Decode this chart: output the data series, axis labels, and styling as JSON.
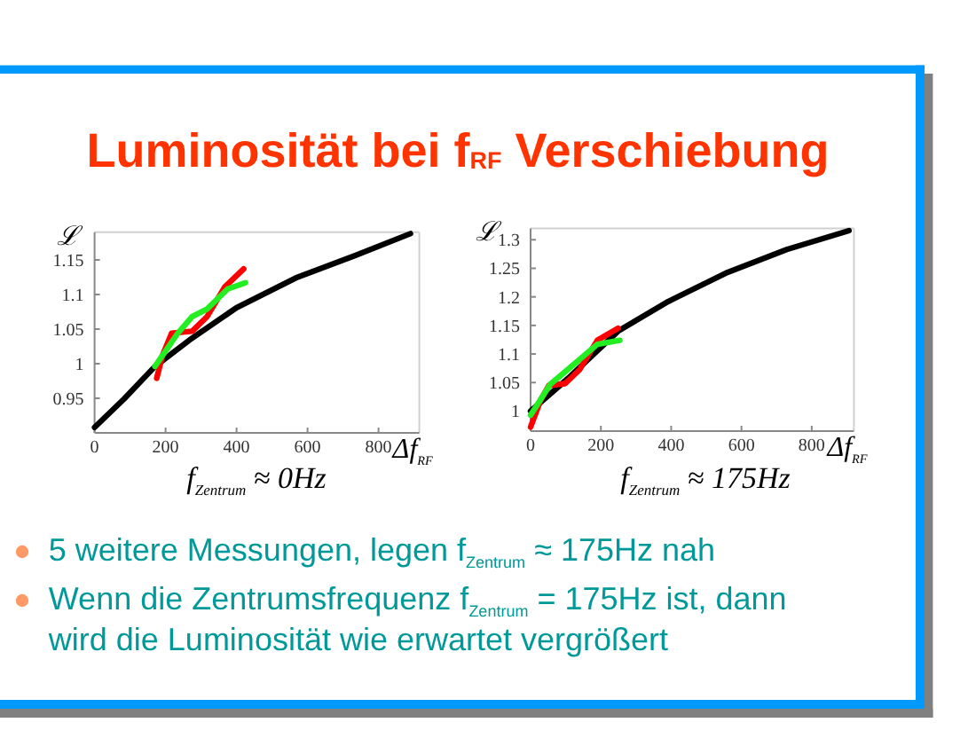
{
  "chart_data": [
    {
      "type": "line",
      "title": "Luminosität bei f$_{RF}$ Verschiebung",
      "xlabel": "Δf$_{RF}$",
      "ylabel": "ℒ",
      "annotations": [
        "f$_{Zentrum}$ ≈ 0Hz"
      ],
      "xlim": [
        0,
        915
      ],
      "ylim": [
        0.9,
        1.19
      ],
      "xticks": [
        0,
        200,
        400,
        600,
        800
      ],
      "yticks": [
        0.95,
        1,
        1.05,
        1.1,
        1.15
      ],
      "series": [
        {
          "color": "#000000",
          "x": [
            0,
            83,
            170,
            267,
            400,
            567,
            733,
            890
          ],
          "values": [
            0.908,
            0.949,
            0.996,
            1.034,
            1.081,
            1.124,
            1.156,
            1.188
          ]
        },
        {
          "color": "#ff0000",
          "x": [
            175,
            192,
            217,
            275,
            317,
            367,
            420
          ],
          "values": [
            0.979,
            1.013,
            1.044,
            1.047,
            1.068,
            1.111,
            1.137
          ]
        },
        {
          "color": "#22ee22",
          "x": [
            170,
            233,
            275,
            317,
            375,
            425
          ],
          "values": [
            0.996,
            1.043,
            1.068,
            1.079,
            1.108,
            1.117
          ]
        }
      ]
    },
    {
      "type": "line",
      "xlabel": "Δf$_{RF}$",
      "ylabel": "ℒ",
      "annotations": [
        "f$_{Zentrum}$ ≈ 175Hz",
        "5 weitere Messungen, legen f$_{Zentrum}$ ≈ 175Hz nah",
        "Wenn die Zentrumsfrequenz f$_{Zentrum}$ = 175Hz ist, dann wird die Luminosität wie erwartet vergrößert"
      ],
      "xlim": [
        0,
        920
      ],
      "ylim": [
        0.965,
        1.32
      ],
      "xticks": [
        0,
        200,
        400,
        600,
        800
      ],
      "yticks": [
        1,
        1.05,
        1.1,
        1.15,
        1.2,
        1.25,
        1.3
      ],
      "series": [
        {
          "color": "#000000",
          "x": [
            0,
            106,
            249,
            392,
            561,
            729,
            906
          ],
          "values": [
            1.0,
            1.057,
            1.14,
            1.192,
            1.243,
            1.283,
            1.316
          ]
        },
        {
          "color": "#ff0000",
          "x": [
            0,
            30,
            52,
            98,
            140,
            190,
            249
          ],
          "values": [
            0.972,
            1.021,
            1.045,
            1.048,
            1.073,
            1.124,
            1.145
          ]
        },
        {
          "color": "#22ee22",
          "x": [
            0,
            56,
            106,
            190,
            254
          ],
          "values": [
            0.993,
            1.047,
            1.073,
            1.117,
            1.124
          ]
        }
      ]
    }
  ]
}
